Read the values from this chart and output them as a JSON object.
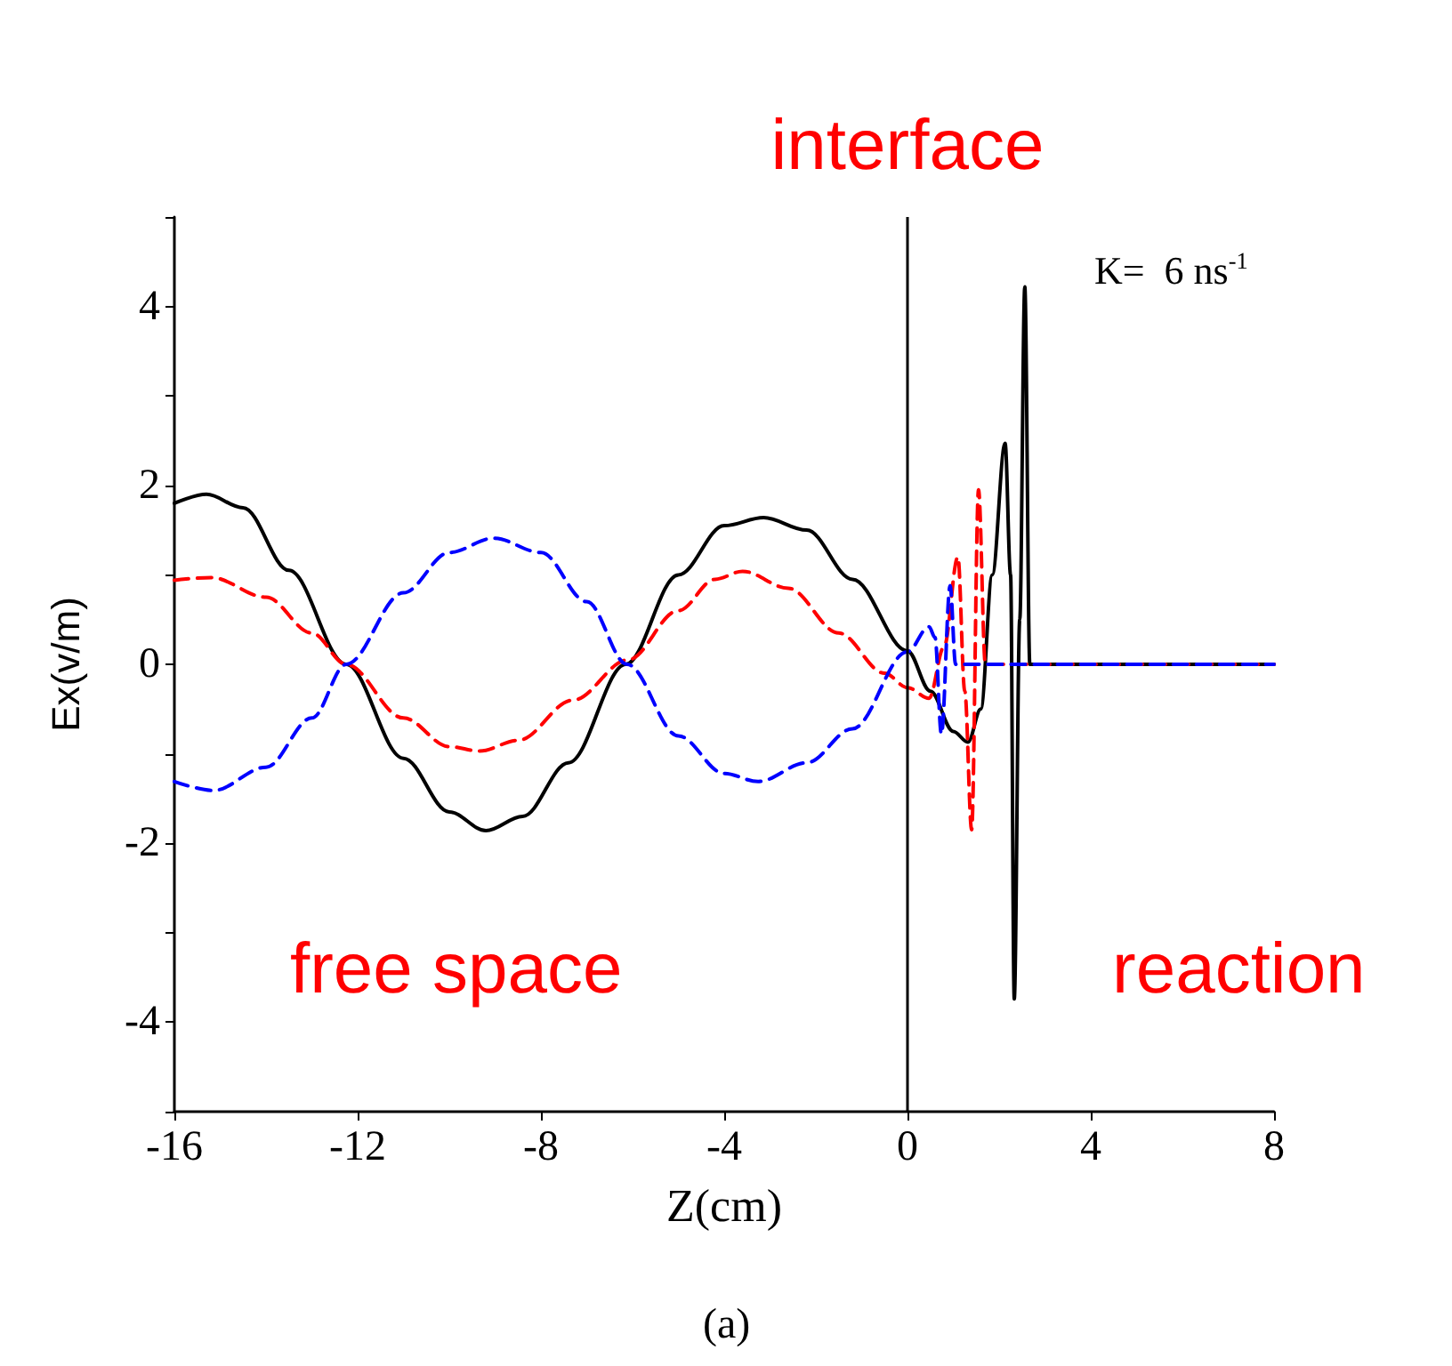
{
  "chart_data": {
    "type": "line",
    "xlabel": "Z(cm)",
    "ylabel": "Ex(v/m)",
    "annotations": [
      "K=  6 ns$^{-1}$",
      "free space",
      "reaction",
      "(a)"
    ],
    "xlim": [
      -16,
      8
    ],
    "xticks": [
      -16,
      -12,
      -8,
      -4,
      0,
      4,
      8
    ],
    "ylim": [
      -5,
      5
    ],
    "yticks": [
      {
        "value": -5,
        "label": null
      },
      -4,
      {
        "value": -3,
        "label": null
      },
      -2,
      {
        "value": -1,
        "label": null
      },
      0,
      {
        "value": 1,
        "label": null
      },
      2,
      {
        "value": 3,
        "label": null
      },
      4,
      {
        "value": 5,
        "label": null
      }
    ],
    "grid": false,
    "marker": "none",
    "ref_lines": [
      {
        "axis": "x",
        "value": 0,
        "label": "interface",
        "color": "#000000"
      }
    ],
    "series": [
      {
        "color": "#000000",
        "line_style": "solid",
        "x": [
          -16,
          -15.3,
          -14.5,
          -13.5,
          -12.25,
          -11,
          -10,
          -9.2,
          -8.4,
          -7.4,
          -6.15,
          -5,
          -4,
          -3.14,
          -2.2,
          -1.2,
          0,
          0.5,
          1.0,
          1.32,
          1.6,
          1.85,
          2.13,
          2.25,
          2.33,
          2.45,
          2.56,
          2.67,
          8
        ],
        "values": [
          1.8,
          1.9,
          1.75,
          1.05,
          0,
          -1.05,
          -1.65,
          -1.86,
          -1.7,
          -1.1,
          0,
          1.0,
          1.55,
          1.64,
          1.5,
          0.95,
          0.15,
          -0.3,
          -0.75,
          -0.87,
          -0.5,
          1.0,
          2.47,
          1.0,
          -3.74,
          0.5,
          4.22,
          0,
          0
        ]
      },
      {
        "color": "#ff0000",
        "line_style": "dashed",
        "x": [
          -16,
          -15.2,
          -14,
          -13,
          -12.25,
          -11,
          -10,
          -9.34,
          -8.5,
          -7.3,
          -6.1,
          -5,
          -4.2,
          -3.6,
          -2.6,
          -1.5,
          -0.5,
          0,
          0.47,
          0.8,
          1.1,
          1.25,
          1.4,
          1.55,
          1.7,
          8
        ],
        "values": [
          0.94,
          0.97,
          0.75,
          0.35,
          0,
          -0.6,
          -0.92,
          -0.97,
          -0.85,
          -0.4,
          0.05,
          0.6,
          0.95,
          1.04,
          0.85,
          0.35,
          -0.1,
          -0.26,
          -0.38,
          0.2,
          1.2,
          -0.3,
          -1.85,
          1.95,
          0,
          0
        ]
      },
      {
        "color": "#0000ff",
        "line_style": "dashed",
        "x": [
          -16,
          -15.15,
          -14,
          -13,
          -12.25,
          -11,
          -10,
          -9.03,
          -8,
          -7,
          -6.12,
          -5,
          -4,
          -3.26,
          -2.2,
          -1.2,
          0,
          0.47,
          0.6,
          0.74,
          0.93,
          1.05,
          8
        ],
        "values": [
          -1.31,
          -1.41,
          -1.15,
          -0.6,
          0,
          0.8,
          1.25,
          1.41,
          1.25,
          0.7,
          0,
          -0.8,
          -1.22,
          -1.31,
          -1.1,
          -0.72,
          0.14,
          0.42,
          0.3,
          -0.78,
          0.88,
          0,
          0
        ]
      }
    ]
  }
}
